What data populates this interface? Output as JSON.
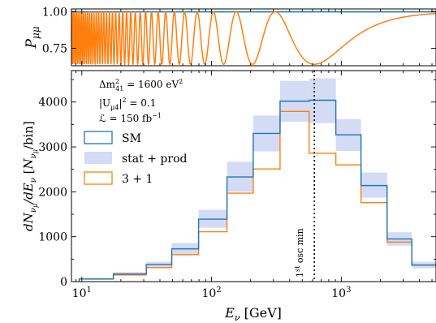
{
  "chart_data": [
    {
      "type": "line",
      "ylabel": "P_{μμ}",
      "ylim": [
        0.63,
        1.02
      ],
      "xlim_log10": [
        0.92,
        3.73
      ],
      "yticks": [
        {
          "value": 0.75,
          "label": "0.75"
        },
        {
          "value": 1.0,
          "label": "1.00"
        }
      ],
      "series": [
        {
          "key": "sm_prob",
          "color": "#1f77b4",
          "constant": 1.0
        },
        {
          "key": "osc_prob",
          "color": "#ff7f0e",
          "dm2_eV2": 1600,
          "amplitude": 0.36,
          "first_min_GeV": 620
        }
      ]
    },
    {
      "type": "step",
      "xlabel": "E_ν [GeV]",
      "ylabel": "dN_{νμ}/dE_ν [N_{νμ}/bin]",
      "ylim": [
        0,
        4700
      ],
      "xlim_log10": [
        0.92,
        3.73
      ],
      "bin_edges_log10": [
        0.98,
        1.243,
        1.497,
        1.693,
        1.9,
        2.119,
        2.321,
        2.528,
        2.752,
        2.958,
        3.152,
        3.353,
        3.544,
        3.73
      ],
      "xticks": [
        {
          "value": 10,
          "base": "10",
          "exp": "1"
        },
        {
          "value": 100,
          "base": "10",
          "exp": "2"
        },
        {
          "value": 1000,
          "base": "10",
          "exp": "3"
        }
      ],
      "yticks": [
        {
          "value": 0,
          "label": "0"
        },
        {
          "value": 1000,
          "label": "1000"
        },
        {
          "value": 2000,
          "label": "2000"
        },
        {
          "value": 3000,
          "label": "3000"
        },
        {
          "value": 4000,
          "label": "4000"
        }
      ],
      "sm": [
        60,
        170,
        380,
        730,
        1390,
        2330,
        3300,
        4020,
        4040,
        3270,
        2140,
        950,
        370
      ],
      "band_low": [
        50,
        130,
        310,
        610,
        1200,
        2000,
        2900,
        3560,
        3530,
        2910,
        1870,
        800,
        300
      ],
      "band_high": [
        70,
        210,
        440,
        860,
        1600,
        2670,
        3700,
        4470,
        4530,
        3620,
        2430,
        1100,
        440
      ],
      "three_plus_one": [
        55,
        150,
        310,
        600,
        1110,
        1970,
        2510,
        3790,
        2860,
        2600,
        1760,
        880,
        370
      ],
      "colors": {
        "sm": "#1f77b4",
        "band": "#d4dbf5",
        "three_plus_one": "#ff7f0e"
      },
      "vline_GeV": 620,
      "vline_label": {
        "base": "1",
        "sup": "st",
        "rest": " osc min"
      },
      "annotations": [
        {
          "pre": "Δm",
          "sup": "2",
          "sub": "41",
          "post": " = 1600 eV",
          "post_sup": "2"
        },
        {
          "pre": "|U",
          "sub": "μ4",
          "post": "|",
          "post_sup": "2",
          "tail": " = 0.1"
        },
        {
          "pre": "ℒ = 150 fb",
          "post_sup": "−1"
        }
      ],
      "legend": [
        {
          "key": "sm",
          "label": "SM"
        },
        {
          "key": "band",
          "label": "stat + prod"
        },
        {
          "key": "three_plus_one",
          "label": "3 + 1"
        }
      ]
    }
  ]
}
